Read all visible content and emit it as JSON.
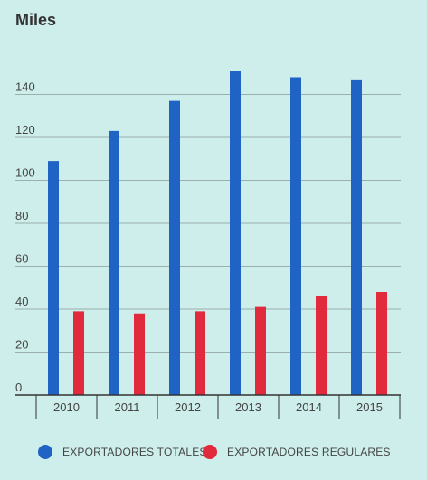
{
  "chart_data": {
    "type": "bar",
    "title": "Miles",
    "xlabel": "",
    "ylabel": "",
    "categories": [
      "2010",
      "2011",
      "2012",
      "2013",
      "2014",
      "2015"
    ],
    "series": [
      {
        "name": "EXPORTADORES TOTALES",
        "values": [
          109,
          123,
          137,
          151,
          148,
          147
        ],
        "color": "#1f63c4"
      },
      {
        "name": "EXPORTADORES REGULARES",
        "values": [
          39,
          38,
          39,
          41,
          46,
          48
        ],
        "color": "#e12b3c"
      }
    ],
    "yticks": [
      0,
      20,
      40,
      60,
      80,
      100,
      120,
      140
    ],
    "ylim": [
      0,
      160
    ],
    "grid": true,
    "legend_position": "bottom"
  }
}
